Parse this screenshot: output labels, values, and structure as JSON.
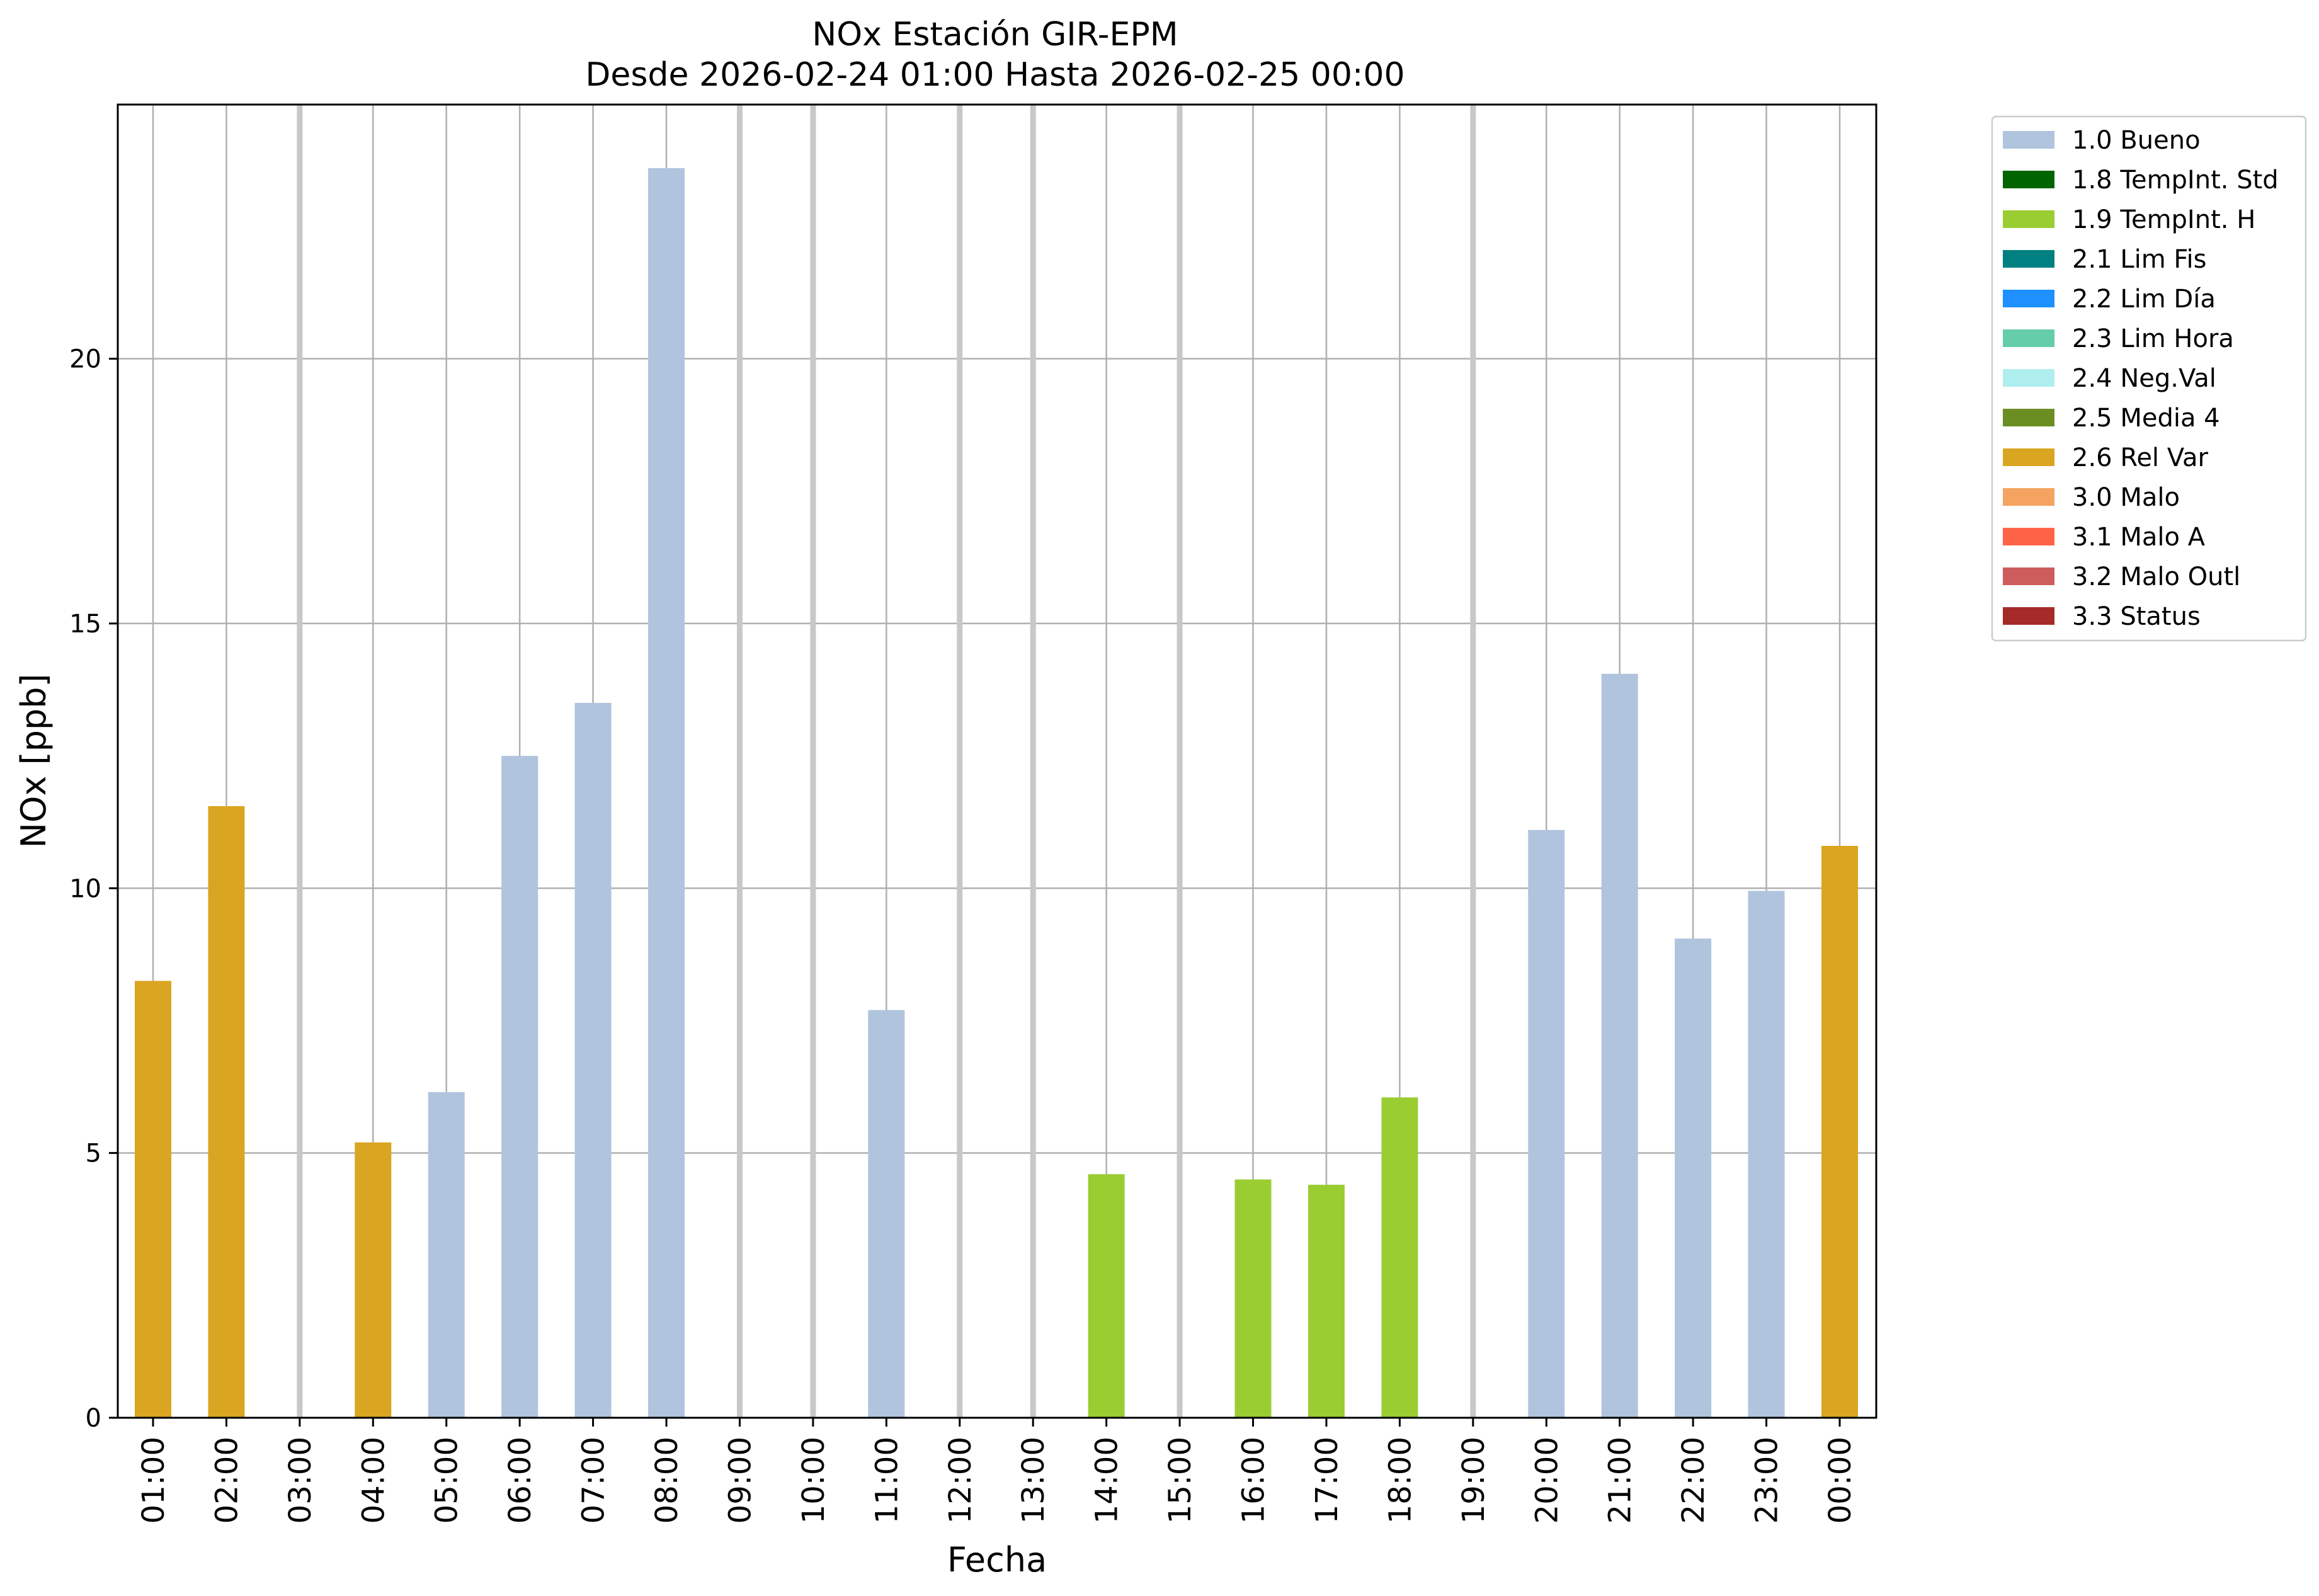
{
  "chart_data": {
    "type": "bar",
    "title": "NOx Estación GIR-EPM",
    "subtitle": "Desde 2026-02-24 01:00 Hasta 2026-02-25 00:00",
    "xlabel": "Fecha",
    "ylabel": "NOx [ppb]",
    "ylim": [
      0,
      24.8
    ],
    "yticks": [
      0,
      5,
      10,
      15,
      20
    ],
    "grid": true,
    "legend_position": "outside-top-right",
    "categories": [
      "01:00",
      "02:00",
      "03:00",
      "04:00",
      "05:00",
      "06:00",
      "07:00",
      "08:00",
      "09:00",
      "10:00",
      "11:00",
      "12:00",
      "13:00",
      "14:00",
      "15:00",
      "16:00",
      "17:00",
      "18:00",
      "19:00",
      "20:00",
      "21:00",
      "22:00",
      "23:00",
      "00:00"
    ],
    "values": [
      8.25,
      11.55,
      null,
      5.2,
      6.15,
      12.5,
      13.5,
      23.6,
      null,
      null,
      7.7,
      null,
      null,
      4.6,
      null,
      4.5,
      4.4,
      6.05,
      null,
      11.1,
      14.05,
      9.05,
      9.95,
      10.8
    ],
    "flags": [
      "2.6",
      "2.6",
      null,
      "2.6",
      "1.0",
      "1.0",
      "1.0",
      "1.0",
      null,
      null,
      "1.0",
      null,
      null,
      "1.9",
      null,
      "1.9",
      "1.9",
      "1.9",
      null,
      "1.0",
      "1.0",
      "1.0",
      "1.0",
      "2.6"
    ],
    "legend": [
      {
        "code": "1.0",
        "label": "1.0 Bueno",
        "color": "#b0c4de"
      },
      {
        "code": "1.8",
        "label": "1.8 TempInt. Std",
        "color": "#006400"
      },
      {
        "code": "1.9",
        "label": "1.9 TempInt. H",
        "color": "#9acd32"
      },
      {
        "code": "2.1",
        "label": "2.1 Lim Fis",
        "color": "#008080"
      },
      {
        "code": "2.2",
        "label": "2.2 Lim Día",
        "color": "#1e90ff"
      },
      {
        "code": "2.3",
        "label": "2.3 Lim Hora",
        "color": "#66cdaa"
      },
      {
        "code": "2.4",
        "label": "2.4 Neg.Val",
        "color": "#afeeee"
      },
      {
        "code": "2.5",
        "label": "2.5 Media 4",
        "color": "#6b8e23"
      },
      {
        "code": "2.6",
        "label": "2.6 Rel Var",
        "color": "#daa520"
      },
      {
        "code": "3.0",
        "label": "3.0 Malo",
        "color": "#f4a460"
      },
      {
        "code": "3.1",
        "label": "3.1 Malo A",
        "color": "#ff6347"
      },
      {
        "code": "3.2",
        "label": "3.2 Malo Outl",
        "color": "#cd5c5c"
      },
      {
        "code": "3.3",
        "label": "3.3 Status",
        "color": "#a52a2a"
      }
    ]
  }
}
